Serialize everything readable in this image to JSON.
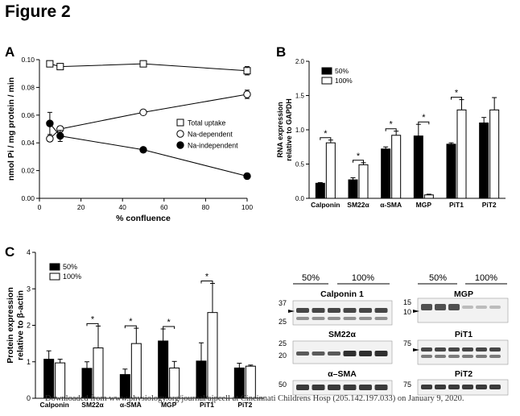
{
  "figure": {
    "title": "Figure 2",
    "footer": "Downloaded from www.physiology.org/journal/ajpcell at Cincinnati Childrens Hosp (205.142.197.033) on January 9, 2020."
  },
  "colors": {
    "ink": "#000000",
    "bar_50": "#000000",
    "bar_100": "#ffffff",
    "blot_bg": "#f2f2f2",
    "band": "#1a1a1a"
  },
  "chart_data": [
    {
      "panel": "A",
      "type": "line",
      "xlabel": "% confluence",
      "ylabel": "nmol Pi / mg protein / min",
      "xlim": [
        0,
        100
      ],
      "ylim": [
        0,
        0.1
      ],
      "xticks": [
        "0",
        "20",
        "40",
        "60",
        "80",
        "100"
      ],
      "yticks": [
        "0.00",
        "0.02",
        "0.04",
        "0.06",
        "0.08",
        "0.10"
      ],
      "legend_position": "right",
      "series": [
        {
          "name": "Total uptake",
          "marker": "open-square",
          "x": [
            5,
            10,
            50,
            100
          ],
          "y": [
            0.097,
            0.095,
            0.097,
            0.092
          ],
          "err": [
            0.002,
            0.001,
            0.002,
            0.003
          ]
        },
        {
          "name": "Na-dependent",
          "marker": "open-circle",
          "x": [
            5,
            10,
            50,
            100
          ],
          "y": [
            0.043,
            0.05,
            0.062,
            0.075
          ],
          "err": [
            0.002,
            0.002,
            0.001,
            0.003
          ]
        },
        {
          "name": "Na-independent",
          "marker": "filled-circle",
          "x": [
            5,
            10,
            50,
            100
          ],
          "y": [
            0.054,
            0.045,
            0.035,
            0.016
          ],
          "err": [
            0.008,
            0.004,
            0.001,
            0.002
          ]
        }
      ]
    },
    {
      "panel": "B",
      "type": "bar",
      "ylabel": "RNA expression relative to GAPDH",
      "ylim": [
        0,
        2.0
      ],
      "yticks": [
        "0.0",
        "0.5",
        "1.0",
        "1.5",
        "2.0"
      ],
      "categories": [
        "Calponin",
        "SM22α",
        "α-SMA",
        "MGP",
        "PiT1",
        "PiT2"
      ],
      "legend_position": "top-left",
      "series": [
        {
          "name": "50%",
          "values": [
            0.22,
            0.27,
            0.72,
            0.91,
            0.79,
            1.1
          ],
          "err": [
            0.01,
            0.03,
            0.03,
            0.17,
            0.02,
            0.08
          ]
        },
        {
          "name": "100%",
          "values": [
            0.81,
            0.49,
            0.92,
            0.05,
            1.29,
            1.29
          ],
          "err": [
            0.04,
            0.03,
            0.06,
            0.01,
            0.15,
            0.18
          ]
        }
      ],
      "significance": [
        "*",
        "*",
        "*",
        "*",
        "*",
        ""
      ]
    },
    {
      "panel": "C",
      "type": "bar",
      "ylabel": "Protein expression relative to β-actin",
      "ylim": [
        0,
        4
      ],
      "yticks": [
        "0",
        "1",
        "2",
        "3",
        "4"
      ],
      "categories": [
        "Calponin",
        "SM22α",
        "α-SMA",
        "MGP",
        "PiT1",
        "PiT2"
      ],
      "legend_position": "top-left",
      "series": [
        {
          "name": "50%",
          "values": [
            1.07,
            0.82,
            0.65,
            1.57,
            1.02,
            0.83
          ],
          "err": [
            0.23,
            0.18,
            0.15,
            0.33,
            0.5,
            0.13
          ]
        },
        {
          "name": "100%",
          "values": [
            0.97,
            1.38,
            1.5,
            0.83,
            2.35,
            0.88
          ],
          "err": [
            0.1,
            0.6,
            0.42,
            0.18,
            0.8,
            0.03
          ]
        }
      ],
      "significance": [
        "",
        "*",
        "*",
        "*",
        "*",
        ""
      ]
    }
  ],
  "blots": {
    "left_headers": [
      "50%",
      "100%"
    ],
    "right_headers": [
      "50%",
      "100%"
    ],
    "left": [
      {
        "name": "Calponin 1",
        "markers": [
          "37",
          "25"
        ]
      },
      {
        "name": "SM22α",
        "markers": [
          "25",
          "20"
        ]
      },
      {
        "name": "α–SMA",
        "markers": [
          "50"
        ]
      }
    ],
    "right": [
      {
        "name": "MGP",
        "markers": [
          "15",
          "10"
        ]
      },
      {
        "name": "PiT1",
        "markers": [
          "75"
        ]
      },
      {
        "name": "PiT2",
        "markers": [
          "75"
        ]
      }
    ]
  }
}
